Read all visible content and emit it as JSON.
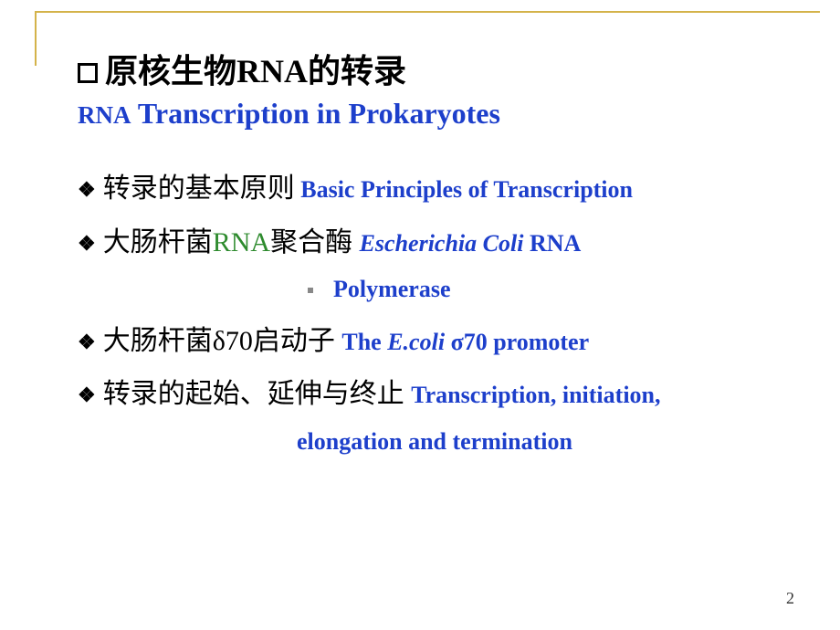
{
  "colors": {
    "accent_blue": "#1d3fcb",
    "frame_gold": "#d4b34a",
    "green": "#2e8b2e",
    "black": "#000000",
    "background": "#ffffff"
  },
  "typography": {
    "title_cn_fontsize": 36,
    "title_en_fontsize": 32,
    "item_fontsize": 26,
    "cn_script_fontsize": 30,
    "pagenum_fontsize": 18
  },
  "title": {
    "cn_prefix": "原核生物",
    "cn_rna": "RNA",
    "cn_suffix": "的转录",
    "en_small": "RNA",
    "en_rest": " Transcription in Prokaryotes"
  },
  "items": [
    {
      "cn": "转录的基本原则",
      "en": " Basic Principles of Transcription"
    },
    {
      "cn_a": "大肠杆菌",
      "cn_green": "RNA",
      "cn_b": "聚合酶 ",
      "en_i": "Escherichia Coli",
      "en": " RNA",
      "cont": "Polymerase"
    },
    {
      "cn": "大肠杆菌δ70启动子 ",
      "en_a": "The ",
      "en_i": "E.coli ",
      "en_b": " σ70 promoter"
    },
    {
      "cn": "转录的起始、延伸与终止  ",
      "en": "Transcription, initiation,",
      "cont": "elongation  and termination"
    }
  ],
  "page_number": "2"
}
